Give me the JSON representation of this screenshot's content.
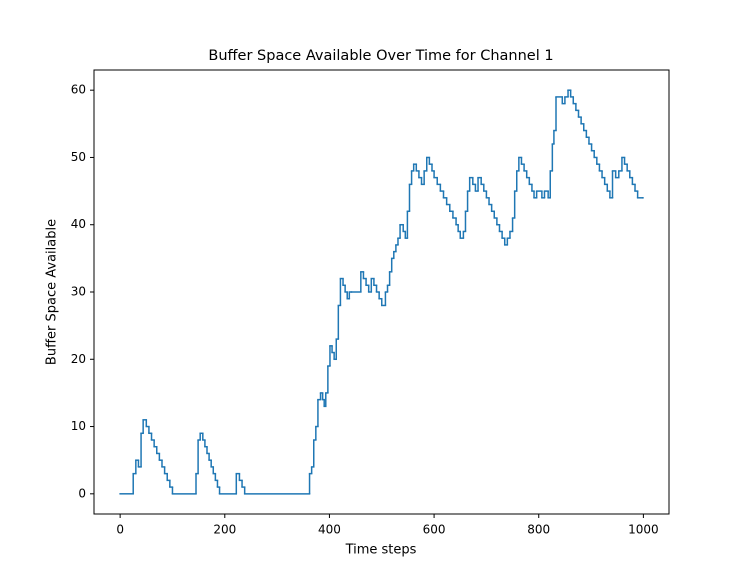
{
  "chart_data": {
    "type": "line",
    "step": "post",
    "title": "Buffer Space Available Over Time for Channel 1",
    "xlabel": "Time steps",
    "ylabel": "Buffer Space Available",
    "color": "#1f77b4",
    "x": [
      0,
      25,
      30,
      35,
      40,
      44,
      50,
      55,
      60,
      65,
      70,
      75,
      80,
      85,
      90,
      95,
      100,
      145,
      149,
      153,
      158,
      162,
      166,
      170,
      174,
      178,
      182,
      186,
      190,
      222,
      228,
      233,
      238,
      362,
      366,
      370,
      374,
      378,
      383,
      387,
      390,
      393,
      397,
      401,
      405,
      409,
      413,
      417,
      421,
      426,
      430,
      434,
      438,
      442,
      460,
      465,
      470,
      475,
      480,
      485,
      490,
      495,
      500,
      507,
      511,
      515,
      519,
      523,
      527,
      531,
      535,
      541,
      545,
      549,
      553,
      557,
      561,
      566,
      571,
      576,
      581,
      586,
      591,
      596,
      600,
      606,
      612,
      618,
      624,
      630,
      636,
      642,
      646,
      650,
      656,
      660,
      664,
      668,
      674,
      679,
      684,
      690,
      695,
      700,
      705,
      710,
      715,
      720,
      725,
      730,
      735,
      740,
      745,
      750,
      754,
      758,
      762,
      767,
      772,
      777,
      782,
      787,
      791,
      796,
      806,
      811,
      818,
      822,
      826,
      829,
      833,
      845,
      850,
      856,
      861,
      866,
      871,
      876,
      881,
      886,
      891,
      896,
      901,
      906,
      911,
      916,
      921,
      926,
      931,
      936,
      941,
      947,
      953,
      959,
      964,
      969,
      974,
      979,
      984,
      989,
      999
    ],
    "values": [
      0,
      3,
      5,
      4,
      9,
      11,
      10,
      9,
      8,
      7,
      6,
      5,
      4,
      3,
      2,
      1,
      0,
      3,
      8,
      9,
      8,
      7,
      6,
      5,
      4,
      3,
      2,
      1,
      0,
      3,
      2,
      1,
      0,
      3,
      4,
      8,
      10,
      14,
      15,
      14,
      13,
      15,
      19,
      22,
      21,
      20,
      23,
      28,
      32,
      31,
      30,
      29,
      30,
      30,
      33,
      32,
      31,
      30,
      32,
      31,
      30,
      29,
      28,
      30,
      31,
      33,
      35,
      36,
      37,
      38,
      40,
      39,
      38,
      42,
      46,
      48,
      49,
      48,
      47,
      46,
      48,
      50,
      49,
      48,
      47,
      46,
      45,
      44,
      43,
      42,
      41,
      40,
      39,
      38,
      39,
      42,
      45,
      47,
      46,
      45,
      47,
      46,
      45,
      44,
      43,
      42,
      41,
      40,
      39,
      38,
      37,
      38,
      39,
      41,
      45,
      48,
      50,
      49,
      48,
      47,
      46,
      45,
      44,
      45,
      44,
      45,
      44,
      48,
      52,
      54,
      59,
      58,
      59,
      60,
      59,
      58,
      57,
      56,
      55,
      54,
      53,
      52,
      51,
      50,
      49,
      48,
      47,
      46,
      45,
      44,
      48,
      47,
      48,
      50,
      49,
      48,
      47,
      46,
      45,
      44,
      44
    ],
    "xlim": [
      -49.95,
      1048.95
    ],
    "ylim": [
      -3,
      63
    ],
    "xticks": [
      0,
      200,
      400,
      600,
      800,
      1000
    ],
    "yticks": [
      0,
      10,
      20,
      30,
      40,
      50,
      60
    ]
  }
}
